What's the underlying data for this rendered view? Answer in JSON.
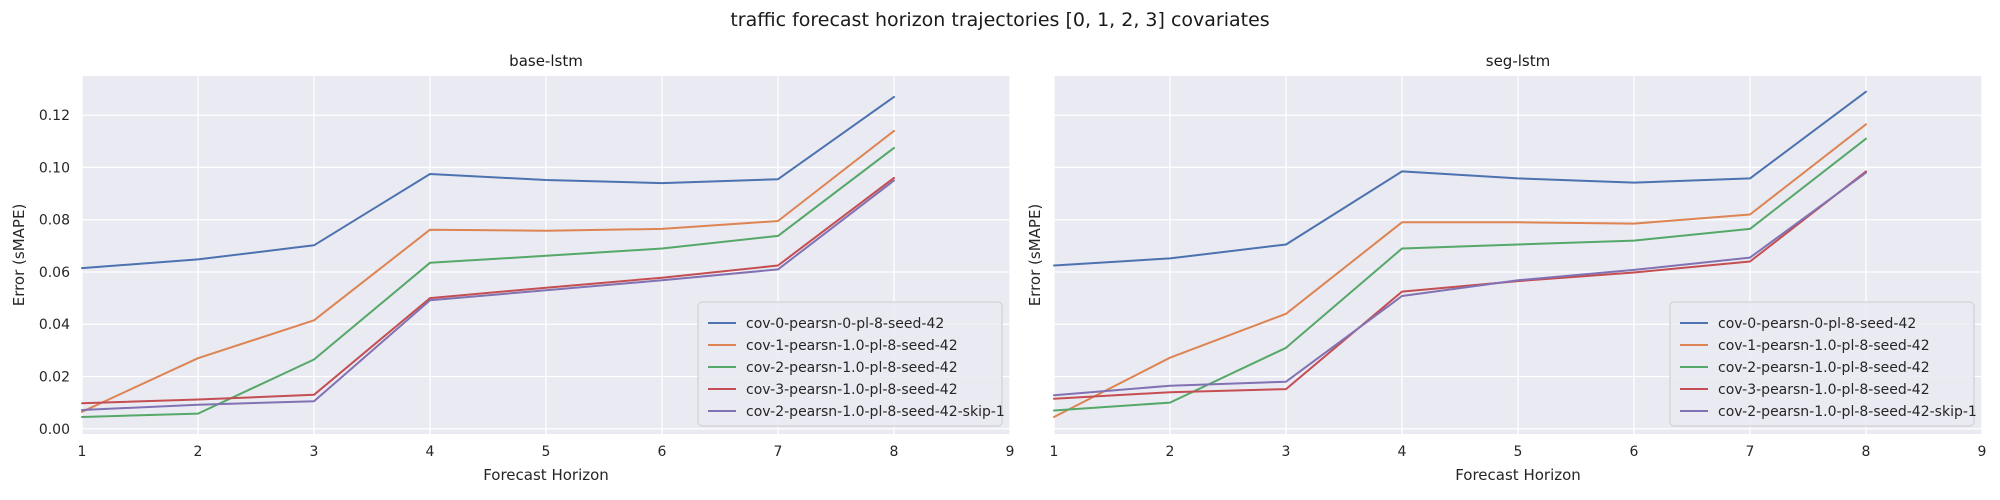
{
  "figure_title": "traffic forecast horizon trajectories [0, 1, 2, 3] covariates",
  "chart_data": [
    {
      "type": "line",
      "title": "base-lstm",
      "xlabel": "Forecast Horizon",
      "ylabel": "Error (sMAPE)",
      "xlim": [
        1,
        9
      ],
      "ylim": [
        -0.002,
        0.135
      ],
      "xticks": [
        1,
        2,
        3,
        4,
        5,
        6,
        7,
        8,
        9
      ],
      "yticks": [
        0.0,
        0.02,
        0.04,
        0.06,
        0.08,
        0.1,
        0.12
      ],
      "ytick_labels": [
        "0.00",
        "0.02",
        "0.04",
        "0.06",
        "0.08",
        "0.10",
        "0.12"
      ],
      "grid": true,
      "legend_position": "lower-right",
      "x": [
        1,
        2,
        3,
        4,
        5,
        6,
        7,
        8
      ],
      "series": [
        {
          "name": "cov-0-pearsn-0-pl-8-seed-42",
          "color": "#4c72b0",
          "values": [
            0.0615,
            0.0648,
            0.0702,
            0.0975,
            0.0952,
            0.094,
            0.0955,
            0.127
          ]
        },
        {
          "name": "cov-1-pearsn-1.0-pl-8-seed-42",
          "color": "#dd8452",
          "values": [
            0.0065,
            0.027,
            0.0415,
            0.0762,
            0.0758,
            0.0765,
            0.0795,
            0.114
          ]
        },
        {
          "name": "cov-2-pearsn-1.0-pl-8-seed-42",
          "color": "#55a868",
          "values": [
            0.0045,
            0.0058,
            0.0265,
            0.0635,
            0.0662,
            0.069,
            0.0738,
            0.1075
          ]
        },
        {
          "name": "cov-3-pearsn-1.0-pl-8-seed-42",
          "color": "#c44e52",
          "values": [
            0.0098,
            0.0112,
            0.013,
            0.05,
            0.054,
            0.0578,
            0.0625,
            0.096
          ]
        },
        {
          "name": "cov-2-pearsn-1.0-pl-8-seed-42-skip-1",
          "color": "#8172b3",
          "values": [
            0.0072,
            0.0092,
            0.0105,
            0.0492,
            0.053,
            0.0568,
            0.061,
            0.095
          ]
        }
      ]
    },
    {
      "type": "line",
      "title": "seg-lstm",
      "xlabel": "Forecast Horizon",
      "ylabel": "Error (sMAPE)",
      "xlim": [
        1,
        9
      ],
      "ylim": [
        -0.002,
        0.135
      ],
      "xticks": [
        1,
        2,
        3,
        4,
        5,
        6,
        7,
        8,
        9
      ],
      "grid": true,
      "legend_position": "lower-right",
      "x": [
        1,
        2,
        3,
        4,
        5,
        6,
        7,
        8
      ],
      "series": [
        {
          "name": "cov-0-pearsn-0-pl-8-seed-42",
          "color": "#4c72b0",
          "values": [
            0.0625,
            0.0652,
            0.0705,
            0.0985,
            0.0958,
            0.0942,
            0.0958,
            0.129
          ]
        },
        {
          "name": "cov-1-pearsn-1.0-pl-8-seed-42",
          "color": "#dd8452",
          "values": [
            0.0045,
            0.0272,
            0.044,
            0.079,
            0.079,
            0.0785,
            0.082,
            0.1165
          ]
        },
        {
          "name": "cov-2-pearsn-1.0-pl-8-seed-42",
          "color": "#55a868",
          "values": [
            0.007,
            0.01,
            0.031,
            0.069,
            0.0705,
            0.072,
            0.0765,
            0.111
          ]
        },
        {
          "name": "cov-3-pearsn-1.0-pl-8-seed-42",
          "color": "#c44e52",
          "values": [
            0.0115,
            0.014,
            0.0152,
            0.0525,
            0.0565,
            0.0598,
            0.064,
            0.0985
          ]
        },
        {
          "name": "cov-2-pearsn-1.0-pl-8-seed-42-skip-1",
          "color": "#8172b3",
          "values": [
            0.0128,
            0.0165,
            0.018,
            0.0508,
            0.0568,
            0.0608,
            0.0655,
            0.098
          ]
        }
      ]
    }
  ]
}
